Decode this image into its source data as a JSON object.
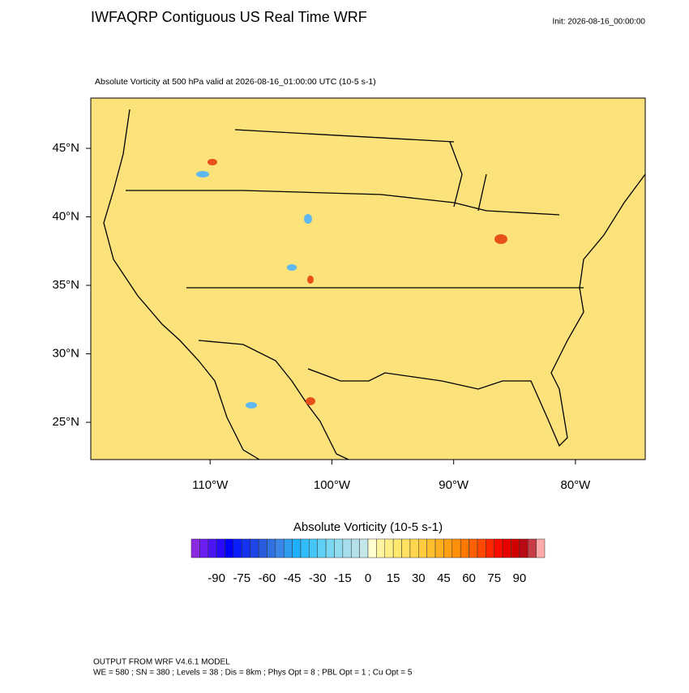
{
  "header": {
    "title": "IWFAQRP Contiguous US Real Time WRF",
    "init": "Init: 2026-08-16_00:00:00",
    "subtitle": "Absolute Vorticity at 500 hPa valid at 2026-08-16_01:00:00 UTC   (10-5 s-1)"
  },
  "map": {
    "xlim": [
      -119.8,
      -74.27
    ],
    "ylim": [
      22.28,
      48.67
    ],
    "xticks": [
      {
        "value": -110,
        "label": "110°W"
      },
      {
        "value": -100,
        "label": "100°W"
      },
      {
        "value": -90,
        "label": "90°W"
      },
      {
        "value": -80,
        "label": "80°W"
      }
    ],
    "yticks": [
      {
        "value": 45,
        "label": "45°N"
      },
      {
        "value": 40,
        "label": "40°N"
      },
      {
        "value": 35,
        "label": "35°N"
      },
      {
        "value": 30,
        "label": "30°N"
      },
      {
        "value": 25,
        "label": "25°N"
      }
    ]
  },
  "colorbar": {
    "title": "Absolute Vorticity  (10-5 s-1)",
    "lim": [
      -105,
      105
    ],
    "ticks": [
      -90,
      -75,
      -60,
      -45,
      -30,
      -15,
      0,
      15,
      30,
      45,
      60,
      75,
      90
    ],
    "colors": [
      "#8a2be2",
      "#6a1ff0",
      "#4a14f5",
      "#2a0aff",
      "#0000ff",
      "#0a1eff",
      "#1432f0",
      "#1e46e6",
      "#285adc",
      "#3070e0",
      "#3a86e8",
      "#2f9cf0",
      "#1eb0fa",
      "#32bcfa",
      "#46c6f8",
      "#5ed0f5",
      "#78d8f2",
      "#92dcef",
      "#a6dceb",
      "#b4e0ea",
      "#c4e8ea",
      "#ffffd0",
      "#fff5a0",
      "#ffef88",
      "#ffe870",
      "#ffe060",
      "#ffd650",
      "#ffcc40",
      "#ffc030",
      "#ffb020",
      "#ffa014",
      "#ff900a",
      "#ff7800",
      "#ff6000",
      "#ff4800",
      "#ff2800",
      "#ff0a00",
      "#e80000",
      "#d00000",
      "#b80a14",
      "#c83c46",
      "#ffaaaa"
    ]
  },
  "footer": {
    "line1": "OUTPUT FROM WRF V4.6.1 MODEL",
    "line2": "WE = 580 ; SN = 380 ; Levels = 38 ; Dis = 8km ; Phys Opt = 8 ; PBL Opt = 1 ; Cu Opt = 5"
  }
}
